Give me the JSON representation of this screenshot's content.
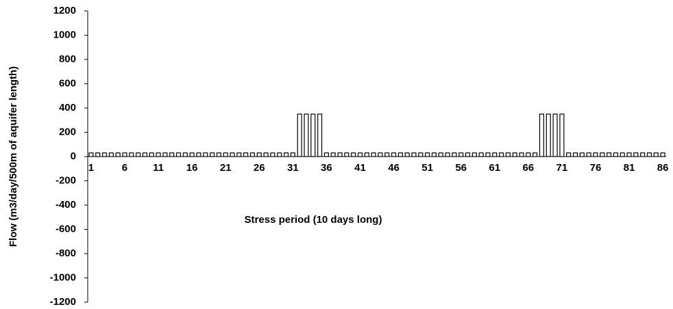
{
  "chart_data": {
    "type": "bar",
    "y_label": "Flow (m3/day/500m of aquifer length)",
    "x_label": "Stress period (10 days long)",
    "categories": [
      "1",
      null,
      null,
      null,
      null,
      "6",
      null,
      null,
      null,
      null,
      "11",
      null,
      null,
      null,
      null,
      "16",
      null,
      null,
      null,
      null,
      "21",
      null,
      null,
      null,
      null,
      "26",
      null,
      null,
      null,
      null,
      "31",
      null,
      null,
      null,
      null,
      "36",
      null,
      null,
      null,
      null,
      "41",
      null,
      null,
      null,
      null,
      "46",
      null,
      null,
      null,
      null,
      "51",
      null,
      null,
      null,
      null,
      "56",
      null,
      null,
      null,
      null,
      "61",
      null,
      null,
      null,
      null,
      "66",
      null,
      null,
      null,
      null,
      "71",
      null,
      null,
      null,
      null,
      "76",
      null,
      null,
      null,
      null,
      "81",
      null,
      null,
      null,
      null,
      "86"
    ],
    "values": [
      30,
      30,
      30,
      30,
      30,
      30,
      30,
      30,
      30,
      30,
      30,
      30,
      30,
      30,
      30,
      30,
      30,
      30,
      30,
      30,
      30,
      30,
      30,
      30,
      30,
      30,
      30,
      30,
      30,
      30,
      30,
      350,
      350,
      350,
      350,
      30,
      30,
      30,
      30,
      30,
      30,
      30,
      30,
      30,
      30,
      30,
      30,
      30,
      30,
      30,
      30,
      30,
      30,
      30,
      30,
      30,
      30,
      30,
      30,
      30,
      30,
      30,
      30,
      30,
      30,
      30,
      30,
      350,
      350,
      350,
      350,
      30,
      30,
      30,
      30,
      30,
      30,
      30,
      30,
      30,
      30,
      30,
      30,
      30,
      30,
      30
    ],
    "color": "#ffffff",
    "edge_color": "#000000",
    "ylim": [
      -1200,
      1200
    ],
    "yticks": [
      -1200,
      -1000,
      -800,
      -600,
      -400,
      -200,
      0,
      200,
      400,
      600,
      800,
      1000,
      1200
    ]
  }
}
